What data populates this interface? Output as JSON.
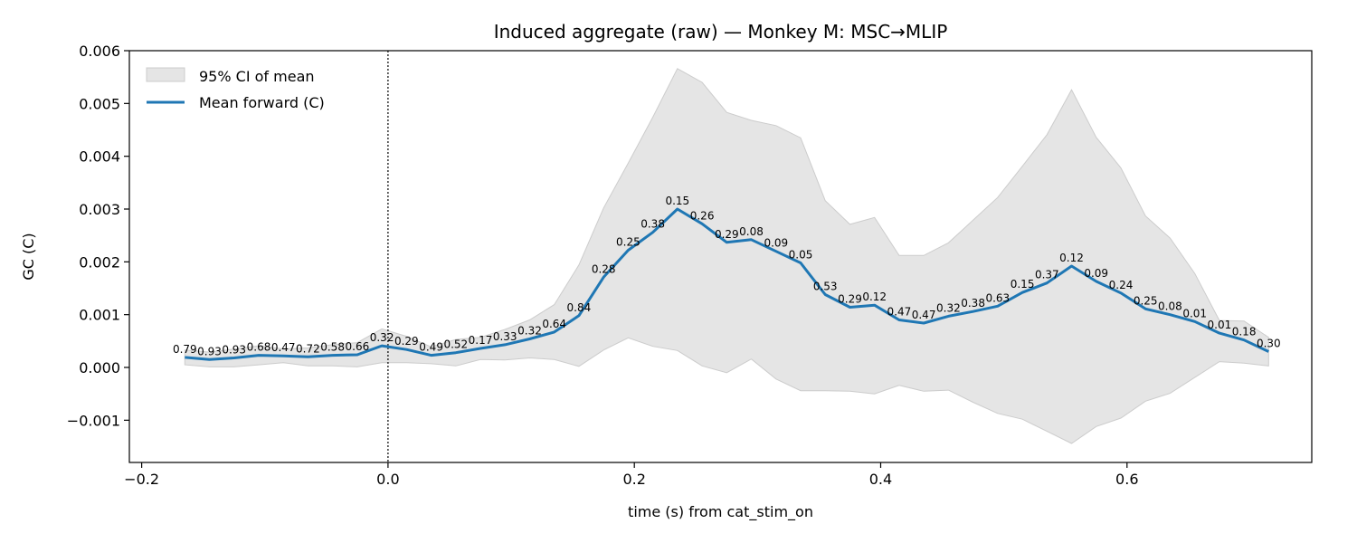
{
  "chart_data": {
    "type": "line",
    "title": "Induced aggregate (raw) — Monkey M: MSC→MLIP",
    "xlabel": "time (s) from cat_stim_on",
    "ylabel": "GC (C)",
    "xlim": [
      -0.21,
      0.75
    ],
    "ylim": [
      -0.0018,
      0.006
    ],
    "x_ticks": [
      -0.2,
      0.0,
      0.2,
      0.4,
      0.6
    ],
    "x_tick_labels": [
      "−0.2",
      "0.0",
      "0.2",
      "0.4",
      "0.6"
    ],
    "y_ticks": [
      -0.001,
      0.0,
      0.001,
      0.002,
      0.003,
      0.004,
      0.005,
      0.006
    ],
    "y_tick_labels": [
      "−0.001",
      "0.000",
      "0.001",
      "0.002",
      "0.003",
      "0.004",
      "0.005",
      "0.006"
    ],
    "vline_x": 0.0,
    "legend": {
      "placement": "top-left",
      "entries": [
        {
          "label": "95% CI of mean",
          "kind": "band"
        },
        {
          "label": "Mean forward (C)",
          "kind": "line"
        }
      ]
    },
    "colors": {
      "line": "#1f77b4",
      "band_fill": "#e5e5e5",
      "band_edge": "#cccccc"
    },
    "series": [
      {
        "name": "Mean forward (C)",
        "x": [
          -0.165,
          -0.145,
          -0.125,
          -0.105,
          -0.085,
          -0.065,
          -0.045,
          -0.025,
          -0.005,
          0.015,
          0.035,
          0.055,
          0.075,
          0.095,
          0.115,
          0.135,
          0.155,
          0.175,
          0.195,
          0.215,
          0.235,
          0.255,
          0.275,
          0.295,
          0.315,
          0.335,
          0.355,
          0.375,
          0.395,
          0.415,
          0.435,
          0.455,
          0.475,
          0.495,
          0.515,
          0.535,
          0.555,
          0.575,
          0.595,
          0.615,
          0.635,
          0.655,
          0.675,
          0.695,
          0.715
        ],
        "y": [
          0.00019,
          0.00015,
          0.00018,
          0.00023,
          0.00022,
          0.0002,
          0.00023,
          0.00024,
          0.00041,
          0.00034,
          0.00023,
          0.00028,
          0.00036,
          0.00043,
          0.00054,
          0.00067,
          0.00098,
          0.00171,
          0.00222,
          0.00256,
          0.003,
          0.00272,
          0.00237,
          0.00242,
          0.0022,
          0.00198,
          0.00138,
          0.00114,
          0.00118,
          0.0009,
          0.00084,
          0.00097,
          0.00106,
          0.00116,
          0.00142,
          0.0016,
          0.00192,
          0.00163,
          0.00141,
          0.00111,
          0.001,
          0.00087,
          0.00065,
          0.00052,
          0.0003
        ],
        "ci_lower": [
          5e-05,
          1e-05,
          1e-05,
          5e-05,
          9e-05,
          3e-05,
          3e-05,
          1e-05,
          9e-05,
          9e-05,
          7e-05,
          3e-05,
          0.00015,
          0.00014,
          0.00018,
          0.00015,
          2e-05,
          0.00033,
          0.00056,
          0.0004,
          0.00032,
          3e-05,
          -0.0001,
          0.00016,
          -0.00022,
          -0.00044,
          -0.00044,
          -0.00045,
          -0.0005,
          -0.00034,
          -0.00045,
          -0.00043,
          -0.00066,
          -0.00087,
          -0.00098,
          -0.00121,
          -0.00144,
          -0.00112,
          -0.00096,
          -0.00064,
          -0.00049,
          -0.00019,
          0.00011,
          8e-05,
          3e-05
        ],
        "ci_upper": [
          0.00033,
          0.00029,
          0.00035,
          0.00041,
          0.00035,
          0.00037,
          0.00043,
          0.00047,
          0.00073,
          0.00059,
          0.00039,
          0.00053,
          0.00057,
          0.00072,
          0.0009,
          0.00119,
          0.00194,
          0.00302,
          0.00387,
          0.00474,
          0.00566,
          0.0054,
          0.00483,
          0.00468,
          0.00458,
          0.00435,
          0.00316,
          0.00271,
          0.00284,
          0.00212,
          0.00212,
          0.00236,
          0.00279,
          0.00322,
          0.00381,
          0.00441,
          0.00526,
          0.00436,
          0.00378,
          0.00287,
          0.00245,
          0.00178,
          0.00089,
          0.00088,
          0.00057
        ],
        "point_labels": [
          "0.79",
          "0.93",
          "0.93",
          "0.68",
          "0.47",
          "0.72",
          "0.58",
          "0.66",
          "0.32",
          "0.29",
          "0.49",
          "0.52",
          "0.17",
          "0.33",
          "0.32",
          "0.64",
          "0.84",
          "0.28",
          "0.25",
          "0.38",
          "0.15",
          "0.26",
          "0.29",
          "0.08",
          "0.09",
          "0.05",
          "0.53",
          "0.29",
          "0.12",
          "0.47",
          "0.47",
          "0.32",
          "0.38",
          "0.63",
          "0.15",
          "0.37",
          "0.12",
          "0.09",
          "0.24",
          "0.25",
          "0.08",
          "0.01",
          "0.01",
          "0.18",
          "0.30"
        ]
      }
    ]
  }
}
